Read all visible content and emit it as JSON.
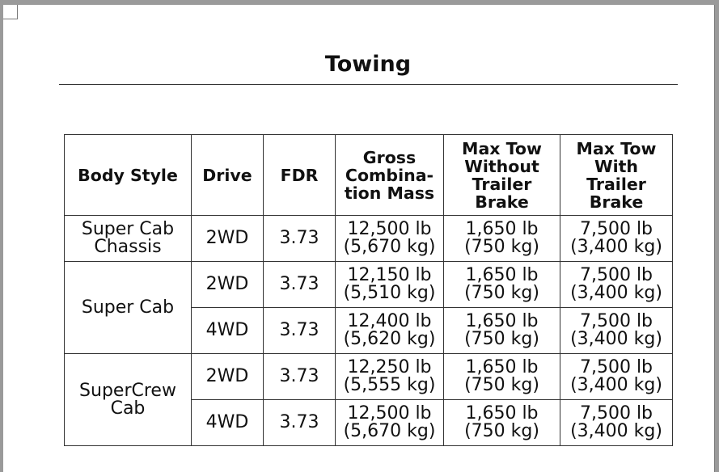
{
  "title": "Towing",
  "table": {
    "headers": [
      {
        "lines": [
          "Body Style"
        ]
      },
      {
        "lines": [
          "Drive"
        ]
      },
      {
        "lines": [
          "FDR"
        ]
      },
      {
        "lines": [
          "Gross",
          "Combina-",
          "tion Mass"
        ]
      },
      {
        "lines": [
          "Max Tow",
          "Without",
          "Trailer",
          "Brake"
        ]
      },
      {
        "lines": [
          "Max Tow",
          "With",
          "Trailer",
          "Brake"
        ]
      }
    ],
    "groups": [
      {
        "body_style": [
          "Super Cab",
          "Chassis"
        ],
        "rows": [
          {
            "drive": "2WD",
            "fdr": "3.73",
            "gcm": [
              "12,500 lb",
              "(5,670 kg)"
            ],
            "no_brake": [
              "1,650 lb",
              "(750 kg)"
            ],
            "with_brake": [
              "7,500 lb",
              "(3,400 kg)"
            ]
          }
        ]
      },
      {
        "body_style": [
          "Super Cab"
        ],
        "rows": [
          {
            "drive": "2WD",
            "fdr": "3.73",
            "gcm": [
              "12,150 lb",
              "(5,510 kg)"
            ],
            "no_brake": [
              "1,650 lb",
              "(750 kg)"
            ],
            "with_brake": [
              "7,500 lb",
              "(3,400 kg)"
            ]
          },
          {
            "drive": "4WD",
            "fdr": "3.73",
            "gcm": [
              "12,400 lb",
              "(5,620 kg)"
            ],
            "no_brake": [
              "1,650 lb",
              "(750 kg)"
            ],
            "with_brake": [
              "7,500 lb",
              "(3,400 kg)"
            ]
          }
        ]
      },
      {
        "body_style": [
          "SuperCrew",
          "Cab"
        ],
        "rows": [
          {
            "drive": "2WD",
            "fdr": "3.73",
            "gcm": [
              "12,250 lb",
              "(5,555 kg)"
            ],
            "no_brake": [
              "1,650 lb",
              "(750 kg)"
            ],
            "with_brake": [
              "7,500 lb",
              "(3,400 kg)"
            ]
          },
          {
            "drive": "4WD",
            "fdr": "3.73",
            "gcm": [
              "12,500 lb",
              "(5,670 kg)"
            ],
            "no_brake": [
              "1,650 lb",
              "(750 kg)"
            ],
            "with_brake": [
              "7,500 lb",
              "(3,400 kg)"
            ]
          }
        ]
      }
    ]
  }
}
